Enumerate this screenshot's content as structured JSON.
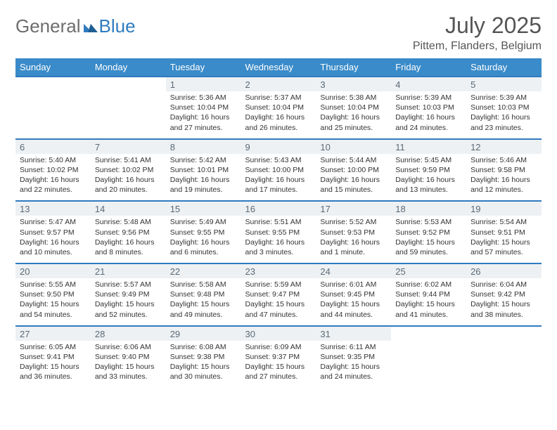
{
  "logo": {
    "general": "General",
    "blue": "Blue"
  },
  "title": "July 2025",
  "location": "Pittem, Flanders, Belgium",
  "colors": {
    "header_bg": "#3a8bc9",
    "accent_line": "#2f7bbf",
    "daynum_bg": "#eef1f3",
    "daynum_text": "#5a6a78",
    "body_text": "#333333",
    "logo_gray": "#6d6d6d",
    "logo_blue": "#2f7bbf"
  },
  "weekdays": [
    "Sunday",
    "Monday",
    "Tuesday",
    "Wednesday",
    "Thursday",
    "Friday",
    "Saturday"
  ],
  "weeks": [
    [
      null,
      null,
      {
        "n": "1",
        "sr": "Sunrise: 5:36 AM",
        "ss": "Sunset: 10:04 PM",
        "d1": "Daylight: 16 hours",
        "d2": "and 27 minutes."
      },
      {
        "n": "2",
        "sr": "Sunrise: 5:37 AM",
        "ss": "Sunset: 10:04 PM",
        "d1": "Daylight: 16 hours",
        "d2": "and 26 minutes."
      },
      {
        "n": "3",
        "sr": "Sunrise: 5:38 AM",
        "ss": "Sunset: 10:04 PM",
        "d1": "Daylight: 16 hours",
        "d2": "and 25 minutes."
      },
      {
        "n": "4",
        "sr": "Sunrise: 5:39 AM",
        "ss": "Sunset: 10:03 PM",
        "d1": "Daylight: 16 hours",
        "d2": "and 24 minutes."
      },
      {
        "n": "5",
        "sr": "Sunrise: 5:39 AM",
        "ss": "Sunset: 10:03 PM",
        "d1": "Daylight: 16 hours",
        "d2": "and 23 minutes."
      }
    ],
    [
      {
        "n": "6",
        "sr": "Sunrise: 5:40 AM",
        "ss": "Sunset: 10:02 PM",
        "d1": "Daylight: 16 hours",
        "d2": "and 22 minutes."
      },
      {
        "n": "7",
        "sr": "Sunrise: 5:41 AM",
        "ss": "Sunset: 10:02 PM",
        "d1": "Daylight: 16 hours",
        "d2": "and 20 minutes."
      },
      {
        "n": "8",
        "sr": "Sunrise: 5:42 AM",
        "ss": "Sunset: 10:01 PM",
        "d1": "Daylight: 16 hours",
        "d2": "and 19 minutes."
      },
      {
        "n": "9",
        "sr": "Sunrise: 5:43 AM",
        "ss": "Sunset: 10:00 PM",
        "d1": "Daylight: 16 hours",
        "d2": "and 17 minutes."
      },
      {
        "n": "10",
        "sr": "Sunrise: 5:44 AM",
        "ss": "Sunset: 10:00 PM",
        "d1": "Daylight: 16 hours",
        "d2": "and 15 minutes."
      },
      {
        "n": "11",
        "sr": "Sunrise: 5:45 AM",
        "ss": "Sunset: 9:59 PM",
        "d1": "Daylight: 16 hours",
        "d2": "and 13 minutes."
      },
      {
        "n": "12",
        "sr": "Sunrise: 5:46 AM",
        "ss": "Sunset: 9:58 PM",
        "d1": "Daylight: 16 hours",
        "d2": "and 12 minutes."
      }
    ],
    [
      {
        "n": "13",
        "sr": "Sunrise: 5:47 AM",
        "ss": "Sunset: 9:57 PM",
        "d1": "Daylight: 16 hours",
        "d2": "and 10 minutes."
      },
      {
        "n": "14",
        "sr": "Sunrise: 5:48 AM",
        "ss": "Sunset: 9:56 PM",
        "d1": "Daylight: 16 hours",
        "d2": "and 8 minutes."
      },
      {
        "n": "15",
        "sr": "Sunrise: 5:49 AM",
        "ss": "Sunset: 9:55 PM",
        "d1": "Daylight: 16 hours",
        "d2": "and 6 minutes."
      },
      {
        "n": "16",
        "sr": "Sunrise: 5:51 AM",
        "ss": "Sunset: 9:55 PM",
        "d1": "Daylight: 16 hours",
        "d2": "and 3 minutes."
      },
      {
        "n": "17",
        "sr": "Sunrise: 5:52 AM",
        "ss": "Sunset: 9:53 PM",
        "d1": "Daylight: 16 hours",
        "d2": "and 1 minute."
      },
      {
        "n": "18",
        "sr": "Sunrise: 5:53 AM",
        "ss": "Sunset: 9:52 PM",
        "d1": "Daylight: 15 hours",
        "d2": "and 59 minutes."
      },
      {
        "n": "19",
        "sr": "Sunrise: 5:54 AM",
        "ss": "Sunset: 9:51 PM",
        "d1": "Daylight: 15 hours",
        "d2": "and 57 minutes."
      }
    ],
    [
      {
        "n": "20",
        "sr": "Sunrise: 5:55 AM",
        "ss": "Sunset: 9:50 PM",
        "d1": "Daylight: 15 hours",
        "d2": "and 54 minutes."
      },
      {
        "n": "21",
        "sr": "Sunrise: 5:57 AM",
        "ss": "Sunset: 9:49 PM",
        "d1": "Daylight: 15 hours",
        "d2": "and 52 minutes."
      },
      {
        "n": "22",
        "sr": "Sunrise: 5:58 AM",
        "ss": "Sunset: 9:48 PM",
        "d1": "Daylight: 15 hours",
        "d2": "and 49 minutes."
      },
      {
        "n": "23",
        "sr": "Sunrise: 5:59 AM",
        "ss": "Sunset: 9:47 PM",
        "d1": "Daylight: 15 hours",
        "d2": "and 47 minutes."
      },
      {
        "n": "24",
        "sr": "Sunrise: 6:01 AM",
        "ss": "Sunset: 9:45 PM",
        "d1": "Daylight: 15 hours",
        "d2": "and 44 minutes."
      },
      {
        "n": "25",
        "sr": "Sunrise: 6:02 AM",
        "ss": "Sunset: 9:44 PM",
        "d1": "Daylight: 15 hours",
        "d2": "and 41 minutes."
      },
      {
        "n": "26",
        "sr": "Sunrise: 6:04 AM",
        "ss": "Sunset: 9:42 PM",
        "d1": "Daylight: 15 hours",
        "d2": "and 38 minutes."
      }
    ],
    [
      {
        "n": "27",
        "sr": "Sunrise: 6:05 AM",
        "ss": "Sunset: 9:41 PM",
        "d1": "Daylight: 15 hours",
        "d2": "and 36 minutes."
      },
      {
        "n": "28",
        "sr": "Sunrise: 6:06 AM",
        "ss": "Sunset: 9:40 PM",
        "d1": "Daylight: 15 hours",
        "d2": "and 33 minutes."
      },
      {
        "n": "29",
        "sr": "Sunrise: 6:08 AM",
        "ss": "Sunset: 9:38 PM",
        "d1": "Daylight: 15 hours",
        "d2": "and 30 minutes."
      },
      {
        "n": "30",
        "sr": "Sunrise: 6:09 AM",
        "ss": "Sunset: 9:37 PM",
        "d1": "Daylight: 15 hours",
        "d2": "and 27 minutes."
      },
      {
        "n": "31",
        "sr": "Sunrise: 6:11 AM",
        "ss": "Sunset: 9:35 PM",
        "d1": "Daylight: 15 hours",
        "d2": "and 24 minutes."
      },
      null,
      null
    ]
  ]
}
